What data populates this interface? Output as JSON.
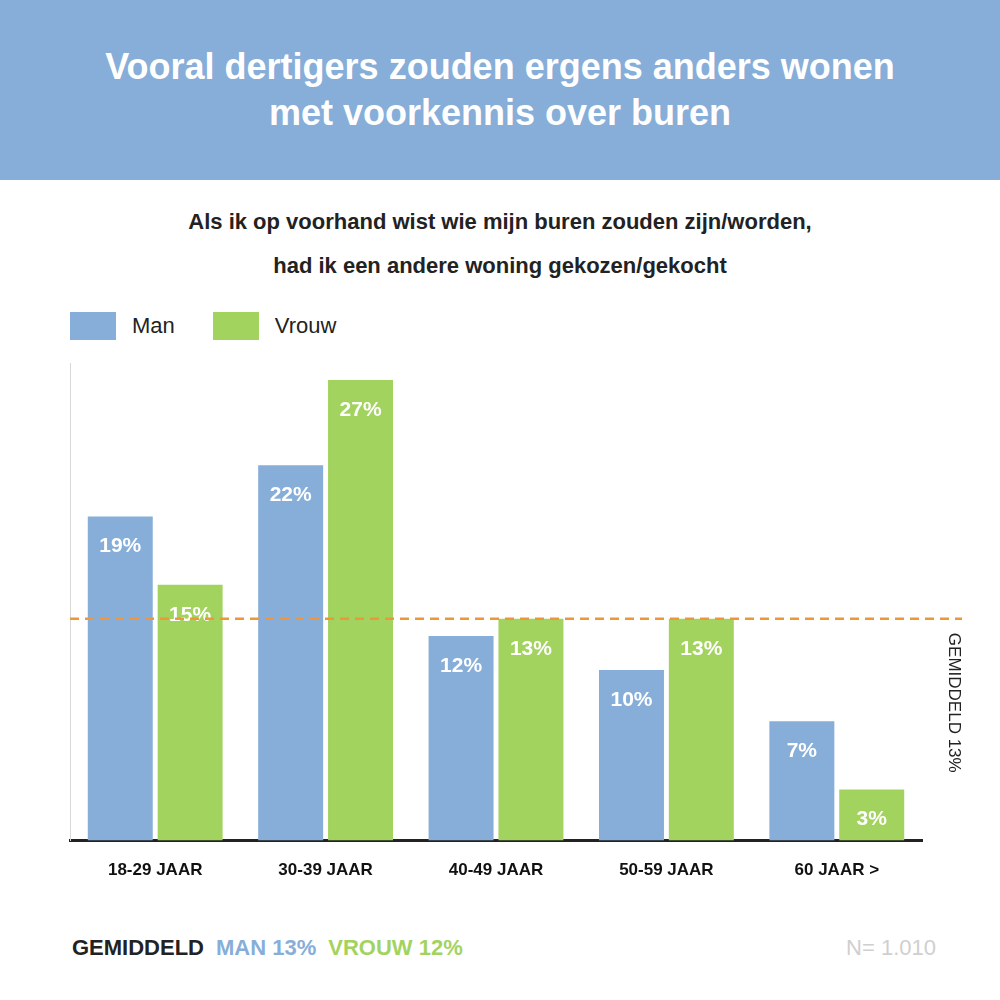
{
  "chart_data": {
    "type": "bar",
    "title": "Vooral dertigers zouden ergens anders wonen met voorkennis over buren",
    "subtitle": [
      "Als ik op voorhand wist wie mijn buren zouden zijn/worden,",
      "had ik een andere woning gekozen/gekocht"
    ],
    "categories": [
      "18-29 JAAR",
      "30-39 JAAR",
      "40-49 JAAR",
      "50-59 JAAR",
      "60 JAAR >"
    ],
    "series": [
      {
        "name": "Man",
        "color": "#86AED8",
        "values": [
          19,
          22,
          12,
          10,
          7
        ],
        "value_labels": [
          "19%",
          "22%",
          "12%",
          "10%",
          "7%"
        ]
      },
      {
        "name": "Vrouw",
        "color": "#A3D35F",
        "values": [
          15,
          27,
          13,
          13,
          3
        ],
        "value_labels": [
          "15%",
          "27%",
          "13%",
          "13%",
          "3%"
        ]
      }
    ],
    "ylim": [
      0,
      28
    ],
    "yticks": [],
    "grid": false,
    "legend": "top-left",
    "data_labels": true,
    "tick_labels": "x",
    "average": {
      "value": 13,
      "label": "GEMIDDELD 13%",
      "color": "#F0963A",
      "line_style": "dashed"
    },
    "footer": [
      "GEMIDDELD",
      "MAN 13%",
      "VROUW 12%"
    ],
    "sample": "N= 1.010"
  }
}
